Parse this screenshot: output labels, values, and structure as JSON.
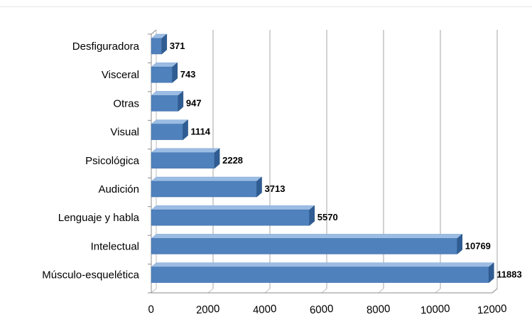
{
  "chart_data": {
    "type": "bar",
    "orientation": "horizontal",
    "style": "3d",
    "categories": [
      "Desfiguradora",
      "Visceral",
      "Otras",
      "Visual",
      "Psicológica",
      "Audición",
      "Lenguaje y habla",
      "Intelectual",
      "Músculo-esquelética"
    ],
    "values": [
      371,
      743,
      947,
      1114,
      2228,
      3713,
      5570,
      10769,
      11883
    ],
    "data_labels": [
      "371",
      "743",
      "947",
      "1114",
      "2228",
      "3713",
      "5570",
      "10769",
      "11883"
    ],
    "title": "",
    "xlabel": "",
    "ylabel": "",
    "xlim": [
      0,
      12000
    ],
    "xticks": [
      0,
      2000,
      4000,
      6000,
      8000,
      10000,
      12000
    ],
    "xtick_labels": [
      "0",
      "2000",
      "4000",
      "6000",
      "8000",
      "10000",
      "12000"
    ],
    "grid": true,
    "legend": "none",
    "colors": {
      "bar_front": "#4f81bd",
      "bar_top": "#9bbce3",
      "bar_side": "#2f5d93",
      "grid": "#a6a6a6"
    }
  }
}
